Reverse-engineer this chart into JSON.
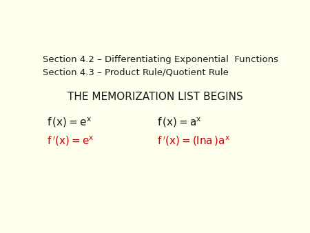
{
  "background_color": "#FFFFEE",
  "section_line1": "Section 4.2 – Differentiating Exponential  Functions",
  "section_line2": "Section 4.3 – Product Rule/Quotient Rule",
  "header": "THE MEMORIZATION LIST BEGINS",
  "section_fontsize": 9.5,
  "header_fontsize": 11,
  "formula_fontsize": 11,
  "text_color": "#1a1a1a",
  "red_color": "#cc0000",
  "formula_black_1": "$\\mathsf{f\\,(x) = e^{x}}$",
  "formula_black_2": "$\\mathsf{f\\,(x) = a^{x}}$",
  "formula_red_1": "$\\mathsf{f\\,'(x) = e^{x}}$",
  "formula_red_2": "$\\mathsf{f\\,'(x) = (lna\\,)a^{x}}$",
  "fig_width": 4.5,
  "fig_height": 3.38,
  "dpi": 100
}
